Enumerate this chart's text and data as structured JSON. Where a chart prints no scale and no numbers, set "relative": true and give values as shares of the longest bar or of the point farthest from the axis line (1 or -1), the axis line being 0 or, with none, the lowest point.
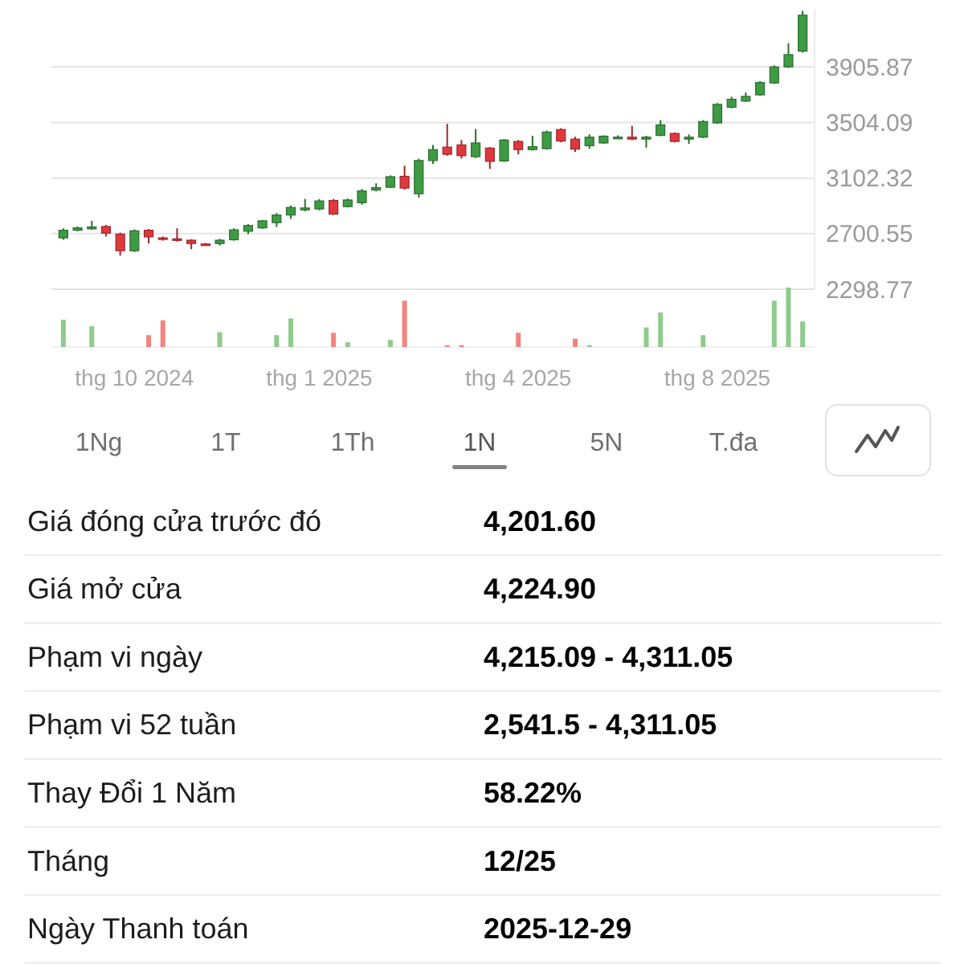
{
  "chart_data": [
    {
      "type": "candlestick",
      "categories": [
        null,
        null,
        null,
        null,
        null,
        "thg 10 2024",
        null,
        null,
        null,
        null,
        null,
        null,
        null,
        null,
        null,
        null,
        null,
        null,
        "thg 1 2025",
        null,
        null,
        null,
        null,
        null,
        null,
        null,
        null,
        null,
        null,
        null,
        null,
        null,
        "thg 4 2025",
        null,
        null,
        null,
        null,
        null,
        null,
        null,
        null,
        null,
        null,
        null,
        null,
        null,
        "thg 8 2025",
        null,
        null,
        null,
        null,
        null,
        null
      ],
      "ohlc": [
        [
          2670,
          2739,
          2656,
          2725
        ],
        [
          2725,
          2752,
          2718,
          2742
        ],
        [
          2735,
          2793,
          2728,
          2749
        ],
        [
          2752,
          2763,
          2680,
          2704
        ],
        [
          2697,
          2708,
          2541.5,
          2577
        ],
        [
          2577,
          2731,
          2567,
          2721
        ],
        [
          2725,
          2735,
          2629,
          2677
        ],
        [
          2670,
          2680,
          2650,
          2660
        ],
        [
          2663,
          2739,
          2643,
          2653
        ],
        [
          2653,
          2660,
          2588,
          2629
        ],
        [
          2626,
          2633,
          2612,
          2619
        ],
        [
          2629,
          2663,
          2615,
          2653
        ],
        [
          2656,
          2739,
          2650,
          2728
        ],
        [
          2718,
          2769,
          2697,
          2759
        ],
        [
          2742,
          2800,
          2735,
          2793
        ],
        [
          2780,
          2849,
          2749,
          2835
        ],
        [
          2835,
          2904,
          2807,
          2890
        ],
        [
          2872,
          2951,
          2862,
          2886
        ],
        [
          2879,
          2951,
          2869,
          2937
        ],
        [
          2940,
          2951,
          2835,
          2842
        ],
        [
          2896,
          2954,
          2890,
          2944
        ],
        [
          2924,
          3023,
          2910,
          3009
        ],
        [
          3016,
          3064,
          3006,
          3033
        ],
        [
          3036,
          3122,
          3030,
          3112
        ],
        [
          3115,
          3191,
          3019,
          3030
        ],
        [
          2989,
          3243,
          2962,
          3229
        ],
        [
          3229,
          3342,
          3205,
          3308
        ],
        [
          3326,
          3494,
          3264,
          3274
        ],
        [
          3342,
          3377,
          3243,
          3264
        ],
        [
          3257,
          3456,
          3247,
          3356
        ],
        [
          3319,
          3326,
          3168,
          3223
        ],
        [
          3226,
          3384,
          3219,
          3377
        ],
        [
          3367,
          3377,
          3274,
          3308
        ],
        [
          3308,
          3408,
          3302,
          3329
        ],
        [
          3315,
          3446,
          3308,
          3435
        ],
        [
          3453,
          3463,
          3360,
          3370
        ],
        [
          3384,
          3401,
          3291,
          3312
        ],
        [
          3336,
          3418,
          3315,
          3398
        ],
        [
          3356,
          3411,
          3350,
          3405
        ],
        [
          3391,
          3411,
          3384,
          3398
        ],
        [
          3398,
          3480,
          3377,
          3384
        ],
        [
          3384,
          3408,
          3322,
          3398
        ],
        [
          3411,
          3521,
          3405,
          3487
        ],
        [
          3425,
          3432,
          3360,
          3367
        ],
        [
          3384,
          3418,
          3350,
          3398
        ],
        [
          3398,
          3521,
          3391,
          3511
        ],
        [
          3501,
          3645,
          3494,
          3635
        ],
        [
          3614,
          3690,
          3607,
          3672
        ],
        [
          3659,
          3721,
          3652,
          3693
        ],
        [
          3704,
          3803,
          3697,
          3793
        ],
        [
          3790,
          3917,
          3783,
          3906
        ],
        [
          3906,
          4077,
          3899,
          3995
        ],
        [
          4020,
          4311.05,
          4009,
          4280
        ]
      ],
      "colors": [
        "#3e9b43",
        "#3e9b43",
        "#3e9b43",
        "#e0383c",
        "#e0383c",
        "#3e9b43",
        "#e0383c",
        "#e0383c",
        "#e0383c",
        "#e0383c",
        "#e0383c",
        "#3e9b43",
        "#3e9b43",
        "#3e9b43",
        "#3e9b43",
        "#3e9b43",
        "#3e9b43",
        "#3e9b43",
        "#3e9b43",
        "#e0383c",
        "#3e9b43",
        "#3e9b43",
        "#3e9b43",
        "#3e9b43",
        "#e0383c",
        "#3e9b43",
        "#3e9b43",
        "#e0383c",
        "#e0383c",
        "#3e9b43",
        "#e0383c",
        "#3e9b43",
        "#e0383c",
        "#3e9b43",
        "#3e9b43",
        "#e0383c",
        "#e0383c",
        "#3e9b43",
        "#3e9b43",
        "#3e9b43",
        "#e0383c",
        "#3e9b43",
        "#3e9b43",
        "#e0383c",
        "#3e9b43",
        "#3e9b43",
        "#3e9b43",
        "#3e9b43",
        "#3e9b43",
        "#3e9b43",
        "#3e9b43",
        "#3e9b43",
        "#3e9b43"
      ],
      "ylim": [
        2298.77,
        4320
      ],
      "yticks": [
        2298.77,
        2700.55,
        3102.32,
        3504.09,
        3905.87
      ],
      "grid": "y"
    },
    {
      "type": "bar",
      "relative": true,
      "categories": [
        null,
        null,
        null,
        null,
        null,
        null,
        null,
        null,
        null,
        null,
        null,
        null,
        null,
        null,
        null,
        null,
        null,
        null,
        null,
        null,
        null,
        null,
        null,
        null,
        null,
        null,
        null,
        null,
        null,
        null,
        null,
        null,
        null,
        null,
        null,
        null,
        null,
        null,
        null,
        null,
        null,
        null,
        null,
        null,
        null,
        null,
        null,
        null,
        null,
        null,
        null,
        null,
        null
      ],
      "values": [
        0.46,
        null,
        0.35,
        null,
        null,
        null,
        0.2,
        0.45,
        null,
        null,
        null,
        0.25,
        null,
        null,
        null,
        0.2,
        0.48,
        null,
        null,
        0.24,
        0.08,
        null,
        null,
        0.12,
        0.78,
        null,
        null,
        0.03,
        0.03,
        null,
        null,
        null,
        0.24,
        null,
        null,
        null,
        0.14,
        0.03,
        null,
        null,
        null,
        0.33,
        0.58,
        null,
        null,
        0.2,
        null,
        null,
        null,
        null,
        0.78,
        1,
        0.43
      ],
      "colors": [
        "#8fcb8c",
        null,
        "#8fcb8c",
        null,
        null,
        null,
        "#f2847f",
        "#f2847f",
        null,
        null,
        null,
        "#8fcb8c",
        null,
        null,
        null,
        "#8fcb8c",
        "#8fcb8c",
        null,
        null,
        "#f2847f",
        "#8fcb8c",
        null,
        null,
        "#8fcb8c",
        "#f2847f",
        null,
        null,
        "#f2847f",
        "#f2847f",
        null,
        null,
        null,
        "#f2847f",
        null,
        null,
        null,
        "#f2847f",
        "#8fcb8c",
        null,
        null,
        null,
        "#8fcb8c",
        "#8fcb8c",
        null,
        null,
        "#8fcb8c",
        null,
        null,
        null,
        null,
        "#8fcb8c",
        "#8fcb8c",
        "#8fcb8c"
      ]
    },
    {
      "type": "other",
      "annotations": [
        "1Ng",
        "1T",
        "1Th",
        "1N",
        "5N",
        "T.đa"
      ]
    },
    {
      "type": "other",
      "annotations": [
        "Giá đóng cửa trước đó",
        "4,201.60",
        "Giá mở cửa",
        "4,224.90",
        "Phạm vi ngày",
        "4,215.09 - 4,311.05",
        "Phạm vi 52 tuần",
        "2,541.5 - 4,311.05",
        "Thay Đổi 1 Năm",
        "58.22%",
        "Tháng",
        "12/25",
        "Ngày Thanh toán",
        "2025-12-29"
      ]
    }
  ]
}
